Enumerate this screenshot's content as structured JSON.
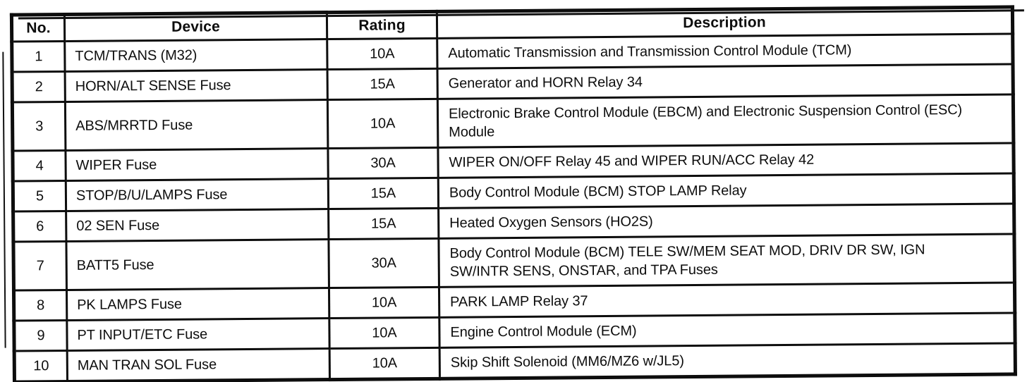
{
  "document": {
    "kind": "scanned fuse block table",
    "colors": {
      "background": "#ffffff",
      "border": "#0d0d0d",
      "text": "#0d0d0d"
    }
  },
  "table": {
    "columns": [
      {
        "key": "no",
        "label": "No."
      },
      {
        "key": "device",
        "label": "Device"
      },
      {
        "key": "rating",
        "label": "Rating"
      },
      {
        "key": "description",
        "label": "Description"
      }
    ],
    "rows": [
      {
        "no": "1",
        "device": "TCM/TRANS (M32)",
        "rating": "10A",
        "description": "Automatic Transmission and Transmission Control Module (TCM)"
      },
      {
        "no": "2",
        "device": "HORN/ALT SENSE Fuse",
        "rating": "15A",
        "description": "Generator and HORN Relay 34"
      },
      {
        "no": "3",
        "device": "ABS/MRRTD Fuse",
        "rating": "10A",
        "description": "Electronic Brake Control Module (EBCM) and Electronic Suspension Control (ESC) Module"
      },
      {
        "no": "4",
        "device": "WIPER Fuse",
        "rating": "30A",
        "description": "WIPER ON/OFF Relay 45 and WIPER RUN/ACC Relay 42"
      },
      {
        "no": "5",
        "device": "STOP/B/U/LAMPS Fuse",
        "rating": "15A",
        "description": "Body Control Module (BCM) STOP LAMP Relay"
      },
      {
        "no": "6",
        "device": "02 SEN Fuse",
        "rating": "15A",
        "description": "Heated Oxygen Sensors (HO2S)"
      },
      {
        "no": "7",
        "device": "BATT5 Fuse",
        "rating": "30A",
        "description": "Body Control Module (BCM) TELE SW/MEM SEAT MOD, DRIV DR SW, IGN SW/INTR SENS, ONSTAR, and TPA Fuses"
      },
      {
        "no": "8",
        "device": "PK LAMPS Fuse",
        "rating": "10A",
        "description": "PARK LAMP Relay 37"
      },
      {
        "no": "9",
        "device": "PT INPUT/ETC Fuse",
        "rating": "10A",
        "description": "Engine Control Module (ECM)"
      },
      {
        "no": "10",
        "device": "MAN TRAN SOL Fuse",
        "rating": "10A",
        "description": "Skip Shift Solenoid (MM6/MZ6 w/JL5)"
      }
    ]
  }
}
